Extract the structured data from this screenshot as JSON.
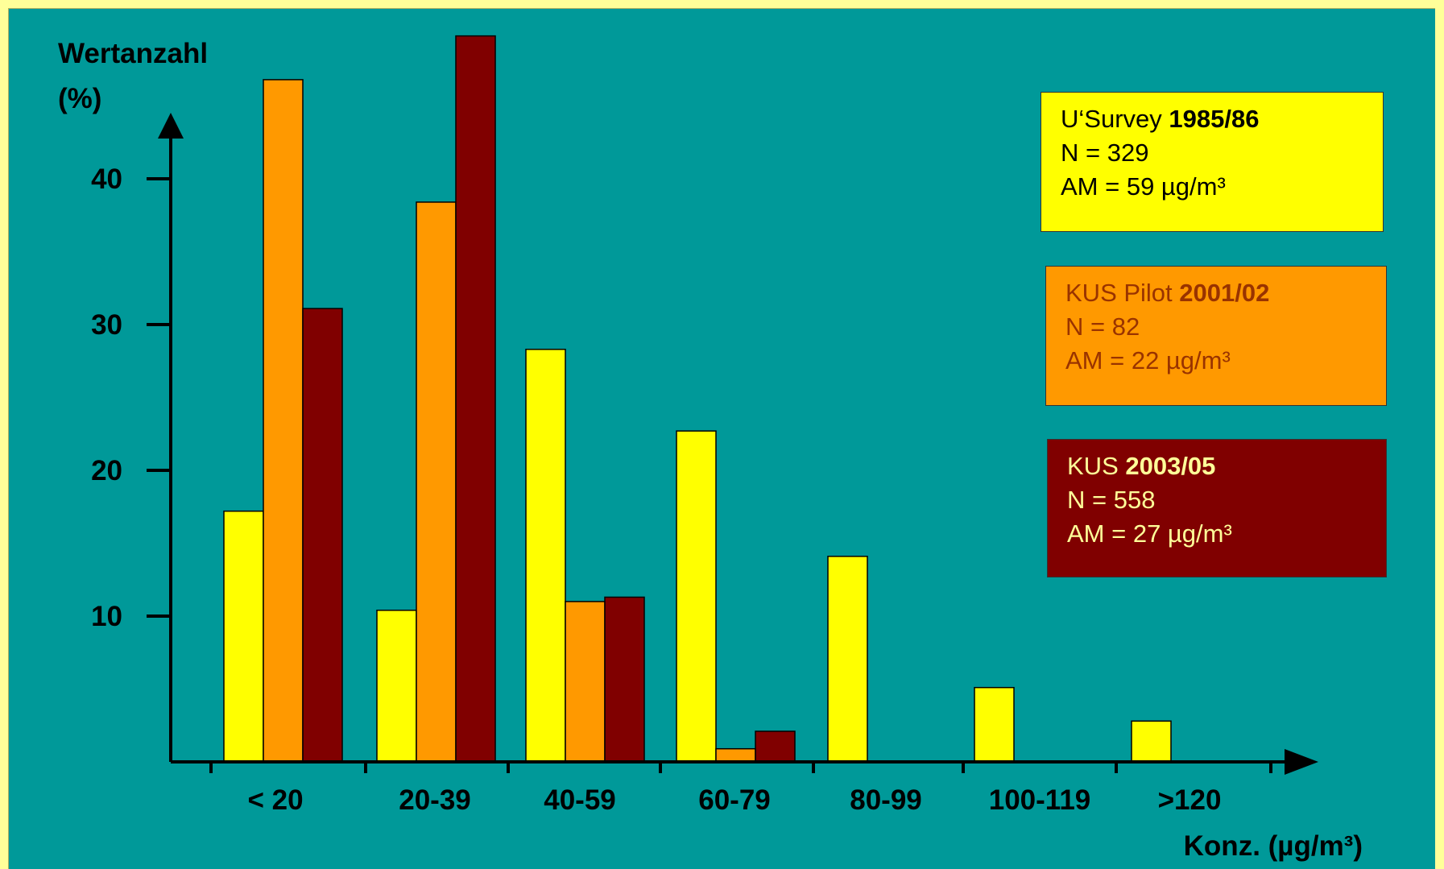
{
  "chart_data": {
    "type": "bar",
    "ylabel": "Wertanzahl (%)",
    "ylabel_lines": [
      "Wertanzahl",
      "(%)"
    ],
    "xlabel": "Konz. (µg/m³)",
    "categories": [
      "< 20",
      "20-39",
      "40-59",
      "60-79",
      "80-99",
      "100-119",
      ">120"
    ],
    "yticks": [
      10,
      20,
      30,
      40
    ],
    "ylim": [
      0,
      50
    ],
    "grid": false,
    "legend_placement": "right",
    "series": [
      {
        "name": "U‘Survey 1985/86",
        "color": "#FFFF00",
        "values": [
          17.2,
          10.4,
          28.3,
          22.7,
          14.1,
          5.1,
          2.8
        ]
      },
      {
        "name": "KUS Pilot 2001/02",
        "color": "#FF9900",
        "values": [
          46.8,
          38.4,
          11.0,
          0.9,
          0,
          0,
          0
        ]
      },
      {
        "name": "KUS 2003/05",
        "color": "#800000",
        "values": [
          31.1,
          49.8,
          11.3,
          2.1,
          0,
          0,
          0
        ]
      }
    ]
  },
  "legend": [
    {
      "label": "U‘Survey ",
      "bold": "1985/86",
      "n": "N = 329",
      "am": "AM  = 59 µg/m³",
      "bg": "#FFFF00",
      "fg": "#000000"
    },
    {
      "label": "KUS Pilot ",
      "bold": "2001/02",
      "n": "N = 82",
      "am": "AM  = 22 µg/m³",
      "bg": "#FF9900",
      "fg": "#993300"
    },
    {
      "label": "KUS ",
      "bold": "2003/05",
      "n": "N = 558",
      "am": "AM  = 27 µg/m³",
      "bg": "#800000",
      "fg": "#FFFF99"
    }
  ],
  "colors": {
    "slide_background": "#009999",
    "frame": "#FFFF99",
    "axis": "#000000"
  }
}
